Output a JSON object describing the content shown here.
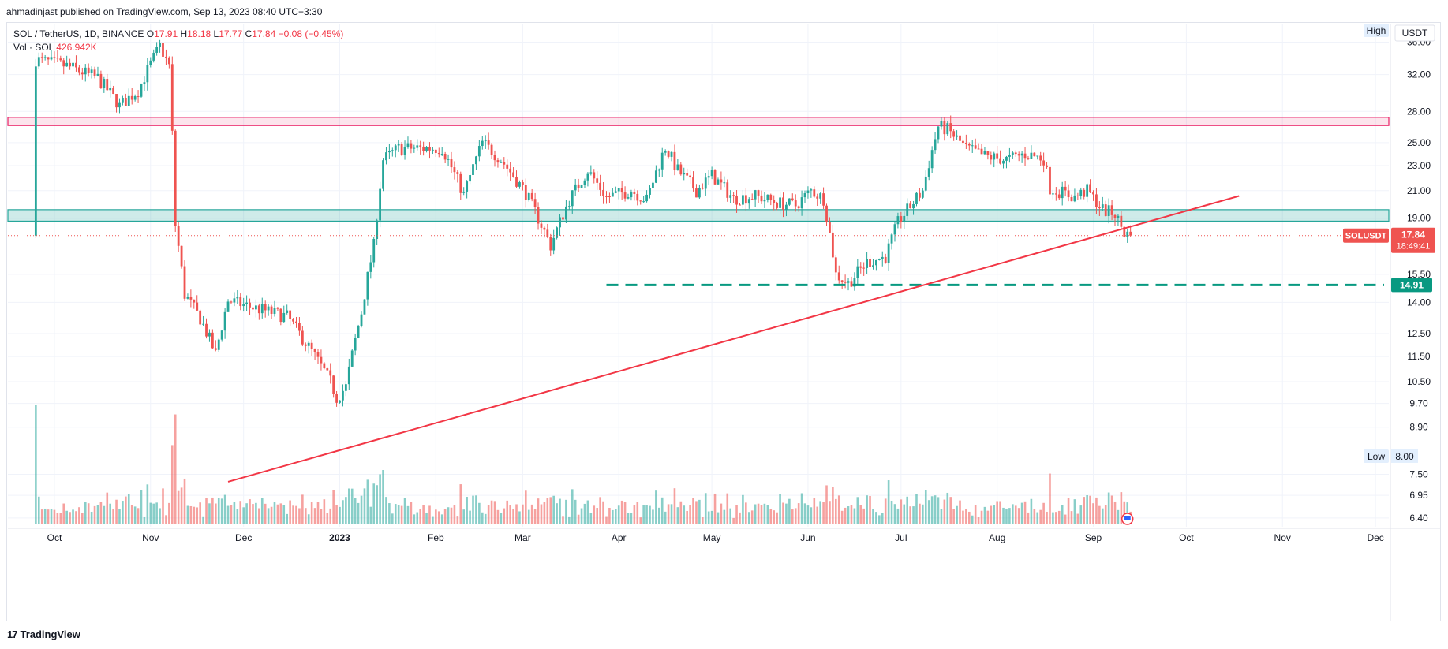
{
  "header": {
    "published_line": "ahmadinjast published on TradingView.com, Sep 13, 2023 08:40 UTC+3:30"
  },
  "legend": {
    "symbol_line": "SOL / TetherUS, 1D, BINANCE",
    "o_label": "O",
    "o_value": "17.91",
    "h_label": "H",
    "h_value": "18.18",
    "l_label": "L",
    "l_value": "17.77",
    "c_label": "C",
    "c_value": "17.84",
    "change": "−0.08 (−0.45%)",
    "vol_label": "Vol · SOL",
    "vol_value": "426.942K"
  },
  "price_axis": {
    "currency": "USDT",
    "high_label": "High",
    "low_label": "Low",
    "low_value": "8.00",
    "price_tag_symbol": "SOLUSDT",
    "price_tag_value": "17.84",
    "price_tag_timer": "18:49:41",
    "level_tag_value": "14.91"
  },
  "branding": {
    "logo_mark": "17",
    "logo_text": "TradingView"
  },
  "colors": {
    "up": "#26a69a",
    "down": "#ef5350",
    "trendline": "#f23645",
    "resistance_zone": "#e91e63",
    "support_zone": "#26a69a",
    "support_dashed": "#089981"
  },
  "chart_data": {
    "type": "candlestick",
    "title": "SOL / TetherUS, 1D, BINANCE",
    "x_tick_labels": [
      "Oct",
      "Nov",
      "Dec",
      "2023",
      "Feb",
      "Mar",
      "Apr",
      "May",
      "Jun",
      "Jul",
      "Aug",
      "Sep",
      "Oct",
      "Nov",
      "Dec"
    ],
    "y_tick_labels": [
      "36.00",
      "32.00",
      "28.00",
      "25.00",
      "23.00",
      "21.00",
      "19.00",
      "15.50",
      "14.00",
      "12.50",
      "11.50",
      "10.50",
      "9.70",
      "8.90",
      "7.50",
      "6.95",
      "6.40"
    ],
    "y_scale": "log",
    "y_range": [
      6.2,
      38.5
    ],
    "last_close": 17.84,
    "period_high": 38.0,
    "period_low": 8.0,
    "close_path": [
      {
        "date": "2022-09-25",
        "close": 33.8
      },
      {
        "date": "2022-10-05",
        "close": 33.0
      },
      {
        "date": "2022-10-15",
        "close": 31.6
      },
      {
        "date": "2022-10-22",
        "close": 28.6
      },
      {
        "date": "2022-10-28",
        "close": 30.2
      },
      {
        "date": "2022-11-04",
        "close": 35.5
      },
      {
        "date": "2022-11-07",
        "close": 33.0
      },
      {
        "date": "2022-11-09",
        "close": 18.5
      },
      {
        "date": "2022-11-12",
        "close": 14.4
      },
      {
        "date": "2022-11-17",
        "close": 13.2
      },
      {
        "date": "2022-11-22",
        "close": 11.6
      },
      {
        "date": "2022-11-26",
        "close": 14.1
      },
      {
        "date": "2022-12-05",
        "close": 13.7
      },
      {
        "date": "2022-12-15",
        "close": 13.3
      },
      {
        "date": "2022-12-22",
        "close": 11.9
      },
      {
        "date": "2022-12-29",
        "close": 10.5
      },
      {
        "date": "2022-12-31",
        "close": 9.9
      },
      {
        "date": "2023-01-03",
        "close": 10.3
      },
      {
        "date": "2023-01-08",
        "close": 13.5
      },
      {
        "date": "2023-01-12",
        "close": 17.2
      },
      {
        "date": "2023-01-15",
        "close": 23.5
      },
      {
        "date": "2023-01-20",
        "close": 24.5
      },
      {
        "date": "2023-01-27",
        "close": 24.5
      },
      {
        "date": "2023-02-03",
        "close": 24.5
      },
      {
        "date": "2023-02-10",
        "close": 20.7
      },
      {
        "date": "2023-02-16",
        "close": 25.0
      },
      {
        "date": "2023-02-22",
        "close": 23.5
      },
      {
        "date": "2023-03-02",
        "close": 20.8
      },
      {
        "date": "2023-03-10",
        "close": 17.2
      },
      {
        "date": "2023-03-16",
        "close": 20.3
      },
      {
        "date": "2023-03-22",
        "close": 22.6
      },
      {
        "date": "2023-03-28",
        "close": 20.5
      },
      {
        "date": "2023-04-05",
        "close": 21.0
      },
      {
        "date": "2023-04-10",
        "close": 20.3
      },
      {
        "date": "2023-04-16",
        "close": 24.6
      },
      {
        "date": "2023-04-20",
        "close": 22.6
      },
      {
        "date": "2023-04-26",
        "close": 21.0
      },
      {
        "date": "2023-05-01",
        "close": 22.2
      },
      {
        "date": "2023-05-08",
        "close": 20.4
      },
      {
        "date": "2023-05-15",
        "close": 20.6
      },
      {
        "date": "2023-05-22",
        "close": 20.1
      },
      {
        "date": "2023-05-28",
        "close": 19.9
      },
      {
        "date": "2023-06-02",
        "close": 21.0
      },
      {
        "date": "2023-06-06",
        "close": 20.4
      },
      {
        "date": "2023-06-10",
        "close": 15.5
      },
      {
        "date": "2023-06-14",
        "close": 15.0
      },
      {
        "date": "2023-06-20",
        "close": 16.2
      },
      {
        "date": "2023-06-26",
        "close": 16.5
      },
      {
        "date": "2023-06-30",
        "close": 18.7
      },
      {
        "date": "2023-07-08",
        "close": 21.0
      },
      {
        "date": "2023-07-13",
        "close": 26.5
      },
      {
        "date": "2023-07-16",
        "close": 26.2
      },
      {
        "date": "2023-07-22",
        "close": 24.5
      },
      {
        "date": "2023-07-28",
        "close": 23.8
      },
      {
        "date": "2023-08-04",
        "close": 23.5
      },
      {
        "date": "2023-08-10",
        "close": 24.0
      },
      {
        "date": "2023-08-16",
        "close": 23.6
      },
      {
        "date": "2023-08-18",
        "close": 21.2
      },
      {
        "date": "2023-08-26",
        "close": 20.5
      },
      {
        "date": "2023-08-30",
        "close": 21.0
      },
      {
        "date": "2023-09-04",
        "close": 19.6
      },
      {
        "date": "2023-09-08",
        "close": 19.3
      },
      {
        "date": "2023-09-11",
        "close": 18.0
      },
      {
        "date": "2023-09-13",
        "close": 17.84
      }
    ],
    "annotations": {
      "resistance_zone": [
        26.6,
        27.4
      ],
      "support_zone": [
        18.8,
        19.6
      ],
      "horizontal_level": 14.91,
      "trendline": [
        {
          "date": "2022-11-26",
          "price": 7.3
        },
        {
          "date": "2023-10-18",
          "price": 20.6
        }
      ]
    }
  }
}
